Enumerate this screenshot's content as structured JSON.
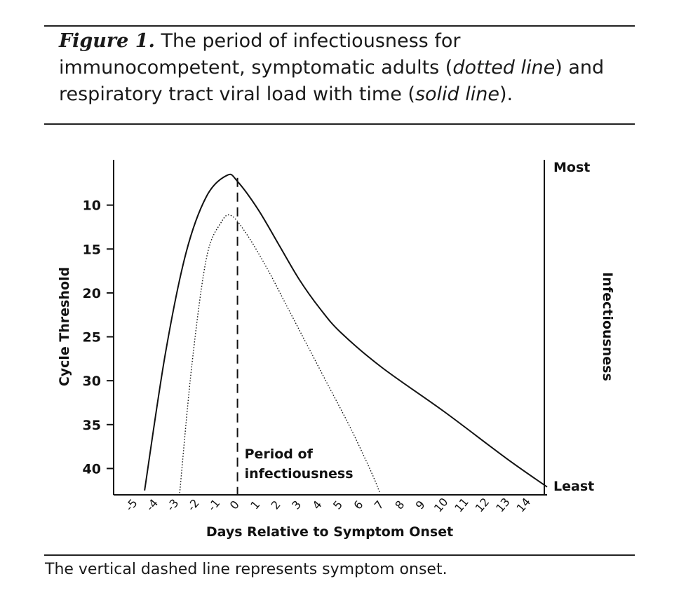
{
  "caption": {
    "figure_label": "Figure 1.",
    "text_1": " The period of infectiousness for immunocompetent, symptomatic adults (",
    "dotted_term": "dotted line",
    "text_2": ") and respiratory tract viral load with time (",
    "solid_term": "solid line",
    "text_3": ")."
  },
  "footnote": "The vertical dashed line represents symptom onset.",
  "colors": {
    "ink": "#111111",
    "rule": "#222222",
    "background": "#ffffff"
  },
  "chart_data": {
    "type": "line",
    "xlabel": "Days Relative to Symptom Onset",
    "ylabel": "Cycle Threshold",
    "ylabel_right": "Infectiousness",
    "right_axis_top_label": "Most",
    "right_axis_bottom_label": "Least",
    "x_ticks": [
      "-5",
      "-4",
      "-3",
      "-2",
      "-1",
      "0",
      "1",
      "2",
      "3",
      "4",
      "5",
      "6",
      "7",
      "8",
      "9",
      "10",
      "11",
      "12",
      "13",
      "14"
    ],
    "y_ticks": [
      10,
      15,
      20,
      25,
      30,
      35,
      40
    ],
    "xlim": [
      -6,
      15
    ],
    "ylim": [
      43,
      5
    ],
    "annotation": {
      "line1": "Period of",
      "line2": "infectiousness",
      "x": 0
    },
    "series": [
      {
        "name": "Respiratory tract viral load",
        "style": "solid",
        "x": [
          -4.5,
          -3.5,
          -2.5,
          -1.5,
          -0.5,
          0,
          1,
          2,
          3,
          4,
          5,
          7,
          10,
          13,
          15
        ],
        "y": [
          42.5,
          27,
          15.5,
          9,
          6.6,
          7.3,
          10.5,
          14.5,
          18.5,
          21.8,
          24.5,
          28.5,
          33.5,
          38.8,
          42.1
        ]
      },
      {
        "name": "Infectiousness",
        "style": "dotted",
        "x": [
          -2.8,
          -2.2,
          -1.5,
          -0.8,
          -0.3,
          0.5,
          1.5,
          2.5,
          3.5,
          4.5,
          5.5,
          6.5,
          6.9
        ],
        "y": [
          42.8,
          28,
          16,
          12,
          11.2,
          13.5,
          17.5,
          22,
          26.5,
          31,
          35.5,
          40.5,
          42.8
        ]
      }
    ]
  }
}
